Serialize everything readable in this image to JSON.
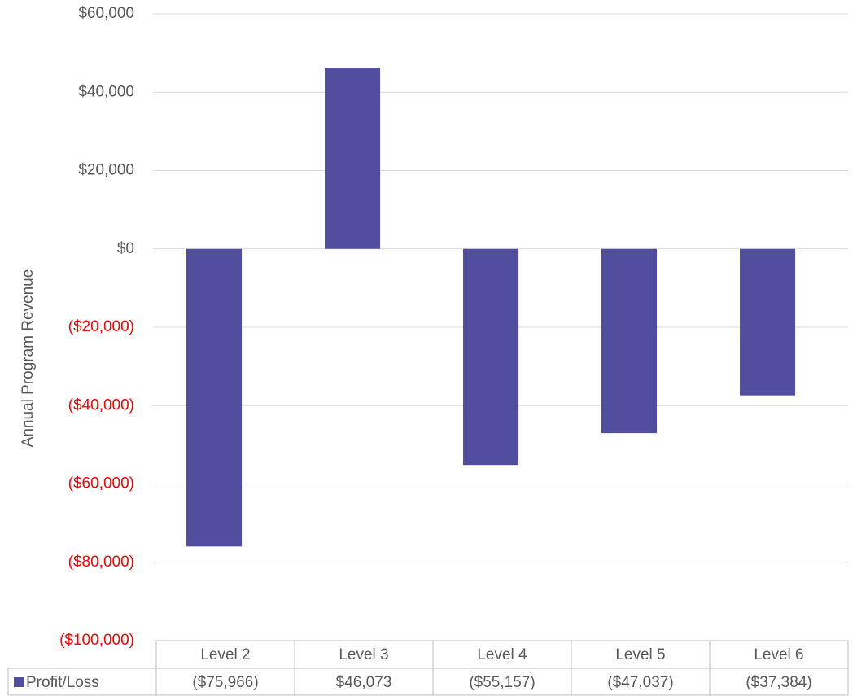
{
  "chart_data": {
    "type": "bar",
    "y_axis_label": "Annual Program Revenue",
    "categories": [
      "Level 2",
      "Level 3",
      "Level 4",
      "Level 5",
      "Level 6"
    ],
    "series": [
      {
        "name": "Profit/Loss",
        "color": "#514e9f",
        "values": [
          -75966,
          46073,
          -55157,
          -47037,
          -37384
        ],
        "value_labels": [
          "($75,966)",
          "$46,073",
          "($55,157)",
          "($47,037)",
          "($37,384)"
        ]
      }
    ],
    "ylim": [
      -100000,
      60000
    ],
    "yticks": [
      {
        "value": -100000,
        "label": "($100,000)"
      },
      {
        "value": -80000,
        "label": "($80,000)"
      },
      {
        "value": -60000,
        "label": "($60,000)"
      },
      {
        "value": -40000,
        "label": "($40,000)"
      },
      {
        "value": -20000,
        "label": "($20,000)"
      },
      {
        "value": 0,
        "label": "$0"
      },
      {
        "value": 20000,
        "label": "$20,000"
      },
      {
        "value": 40000,
        "label": "$40,000"
      },
      {
        "value": 60000,
        "label": "$60,000"
      }
    ],
    "grid": true,
    "negative_tick_color": "#ff0000",
    "data_table": true
  }
}
